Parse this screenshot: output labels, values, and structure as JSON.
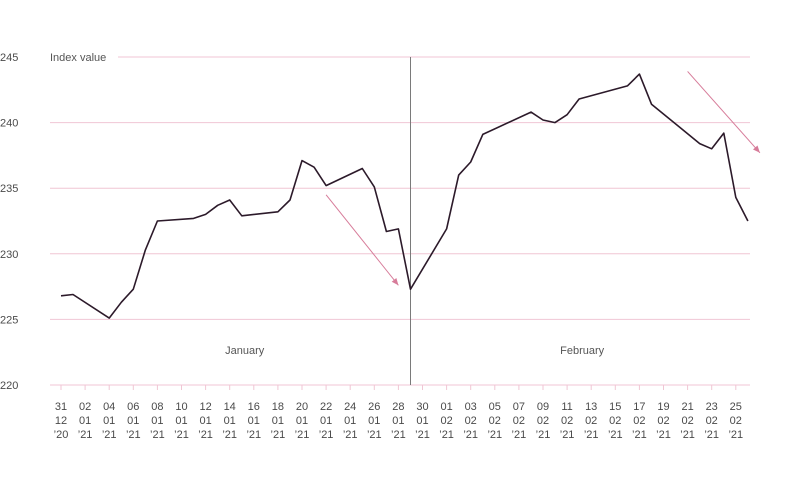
{
  "chart_data": {
    "type": "line",
    "ylabel": "Index value",
    "ylim": [
      220,
      245
    ],
    "yticks": [
      220,
      225,
      230,
      235,
      240,
      245
    ],
    "x_ticks": [
      {
        "date": "2020-12-31",
        "label": [
          "31",
          "12",
          "’20"
        ]
      },
      {
        "date": "2021-01-02",
        "label": [
          "02",
          "01",
          "’21"
        ]
      },
      {
        "date": "2021-01-04",
        "label": [
          "04",
          "01",
          "’21"
        ]
      },
      {
        "date": "2021-01-06",
        "label": [
          "06",
          "01",
          "’21"
        ]
      },
      {
        "date": "2021-01-08",
        "label": [
          "08",
          "01",
          "’21"
        ]
      },
      {
        "date": "2021-01-10",
        "label": [
          "10",
          "01",
          "’21"
        ]
      },
      {
        "date": "2021-01-12",
        "label": [
          "12",
          "01",
          "’21"
        ]
      },
      {
        "date": "2021-01-14",
        "label": [
          "14",
          "01",
          "’21"
        ]
      },
      {
        "date": "2021-01-16",
        "label": [
          "16",
          "01",
          "’21"
        ]
      },
      {
        "date": "2021-01-18",
        "label": [
          "18",
          "01",
          "’21"
        ]
      },
      {
        "date": "2021-01-20",
        "label": [
          "20",
          "01",
          "’21"
        ]
      },
      {
        "date": "2021-01-22",
        "label": [
          "22",
          "01",
          "’21"
        ]
      },
      {
        "date": "2021-01-24",
        "label": [
          "24",
          "01",
          "’21"
        ]
      },
      {
        "date": "2021-01-26",
        "label": [
          "26",
          "01",
          "’21"
        ]
      },
      {
        "date": "2021-01-28",
        "label": [
          "28",
          "01",
          "’21"
        ]
      },
      {
        "date": "2021-01-30",
        "label": [
          "30",
          "01",
          "’21"
        ]
      },
      {
        "date": "2021-02-01",
        "label": [
          "01",
          "02",
          "’21"
        ]
      },
      {
        "date": "2021-02-03",
        "label": [
          "03",
          "02",
          "’21"
        ]
      },
      {
        "date": "2021-02-05",
        "label": [
          "05",
          "02",
          "’21"
        ]
      },
      {
        "date": "2021-02-07",
        "label": [
          "07",
          "02",
          "’21"
        ]
      },
      {
        "date": "2021-02-09",
        "label": [
          "09",
          "02",
          "’21"
        ]
      },
      {
        "date": "2021-02-11",
        "label": [
          "11",
          "02",
          "’21"
        ]
      },
      {
        "date": "2021-02-13",
        "label": [
          "13",
          "02",
          "’21"
        ]
      },
      {
        "date": "2021-02-15",
        "label": [
          "15",
          "02",
          "’21"
        ]
      },
      {
        "date": "2021-02-17",
        "label": [
          "17",
          "02",
          "’21"
        ]
      },
      {
        "date": "2021-02-19",
        "label": [
          "19",
          "02",
          "’21"
        ]
      },
      {
        "date": "2021-02-21",
        "label": [
          "21",
          "02",
          "’21"
        ]
      },
      {
        "date": "2021-02-23",
        "label": [
          "23",
          "02",
          "’21"
        ]
      },
      {
        "date": "2021-02-25",
        "label": [
          "25",
          "02",
          "’21"
        ]
      }
    ],
    "month_labels": [
      {
        "text": "January",
        "date": "2021-01-15"
      },
      {
        "text": "February",
        "date": "2021-02-12"
      }
    ],
    "month_divider_date": "2021-01-30",
    "series": [
      {
        "values": [
          [
            "2020-12-31",
            226.8
          ],
          [
            "2021-01-01",
            226.9
          ],
          [
            "2021-01-04",
            225.1
          ],
          [
            "2021-01-05",
            226.3
          ],
          [
            "2021-01-06",
            227.3
          ],
          [
            "2021-01-07",
            230.3
          ],
          [
            "2021-01-08",
            232.5
          ],
          [
            "2021-01-11",
            232.7
          ],
          [
            "2021-01-12",
            233.0
          ],
          [
            "2021-01-13",
            233.7
          ],
          [
            "2021-01-14",
            234.1
          ],
          [
            "2021-01-15",
            232.9
          ],
          [
            "2021-01-18",
            233.2
          ],
          [
            "2021-01-19",
            234.1
          ],
          [
            "2021-01-20",
            237.1
          ],
          [
            "2021-01-21",
            236.6
          ],
          [
            "2021-01-22",
            235.2
          ],
          [
            "2021-01-25",
            236.5
          ],
          [
            "2021-01-26",
            235.1
          ],
          [
            "2021-01-27",
            231.7
          ],
          [
            "2021-01-28",
            231.9
          ],
          [
            "2021-01-29",
            227.3
          ],
          [
            "2021-02-01",
            231.9
          ],
          [
            "2021-02-02",
            236.0
          ],
          [
            "2021-02-03",
            237.0
          ],
          [
            "2021-02-04",
            239.1
          ],
          [
            "2021-02-08",
            240.8
          ],
          [
            "2021-02-09",
            240.2
          ],
          [
            "2021-02-10",
            240.0
          ],
          [
            "2021-02-11",
            240.6
          ],
          [
            "2021-02-12",
            241.8
          ],
          [
            "2021-02-16",
            242.8
          ],
          [
            "2021-02-17",
            243.7
          ],
          [
            "2021-02-18",
            241.4
          ],
          [
            "2021-02-22",
            238.4
          ],
          [
            "2021-02-23",
            238.0
          ],
          [
            "2021-02-24",
            239.2
          ],
          [
            "2021-02-25",
            234.3
          ],
          [
            "2021-02-26",
            232.5
          ]
        ]
      }
    ],
    "annotations": [
      {
        "type": "arrow",
        "from": [
          "2021-01-22",
          234.5
        ],
        "to": [
          "2021-01-28",
          227.6
        ]
      },
      {
        "type": "arrow",
        "from": [
          "2021-02-21",
          243.9
        ],
        "to": [
          "2021-02-27",
          237.7
        ]
      }
    ],
    "grid": true,
    "colors": {
      "line": "#2c1a2a",
      "grid": "#f0c6d4",
      "arrow": "#d77c9a",
      "divider": "#7a7a7a",
      "text": "#4a4a4a"
    }
  }
}
